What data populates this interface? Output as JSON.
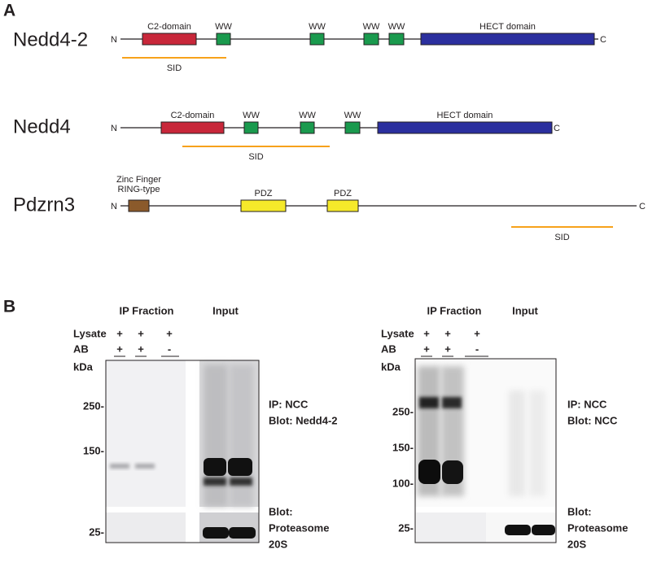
{
  "panel_a": {
    "label": "A",
    "proteins": [
      {
        "name": "Nedd4-2",
        "n_terminus": "N",
        "c_terminus": "C",
        "domains": [
          "C2-domain",
          "WW",
          "WW",
          "WW",
          "WW",
          "HECT domain"
        ],
        "sid": "SID"
      },
      {
        "name": "Nedd4",
        "n_terminus": "N",
        "c_terminus": "C",
        "domains": [
          "C2-domain",
          "WW",
          "WW",
          "WW",
          "HECT domain"
        ],
        "sid": "SID"
      },
      {
        "name": "Pdzrn3",
        "n_terminus": "N",
        "c_terminus": "C",
        "domains": [
          [
            "Zinc Finger",
            "RING-type"
          ],
          "PDZ",
          "PDZ"
        ],
        "sid": "SID"
      }
    ]
  },
  "panel_b": {
    "label": "B",
    "blots": [
      {
        "headers": [
          "IP Fraction",
          "Input"
        ],
        "rows": [
          {
            "label": "Lysate",
            "signs": [
              "+",
              "+",
              "+"
            ]
          },
          {
            "label": "AB",
            "signs": [
              "+",
              "+",
              "-"
            ]
          }
        ],
        "unit": "kDa",
        "markers": [
          "250-",
          "150-",
          "25-"
        ],
        "description": [
          "IP: NCC",
          "Blot: Nedd4-2"
        ],
        "loading": [
          "Blot:",
          "Proteasome",
          "20S"
        ]
      },
      {
        "headers": [
          "IP Fraction",
          "Input"
        ],
        "rows": [
          {
            "label": "Lysate",
            "signs": [
              "+",
              "+",
              "+"
            ]
          },
          {
            "label": "AB",
            "signs": [
              "+",
              "+",
              "-"
            ]
          }
        ],
        "unit": "kDa",
        "markers": [
          "250-",
          "150-",
          "100-",
          "25-"
        ],
        "description": [
          "IP: NCC",
          "Blot: NCC"
        ],
        "loading": [
          "Blot:",
          "Proteasome",
          "20S"
        ]
      }
    ]
  }
}
